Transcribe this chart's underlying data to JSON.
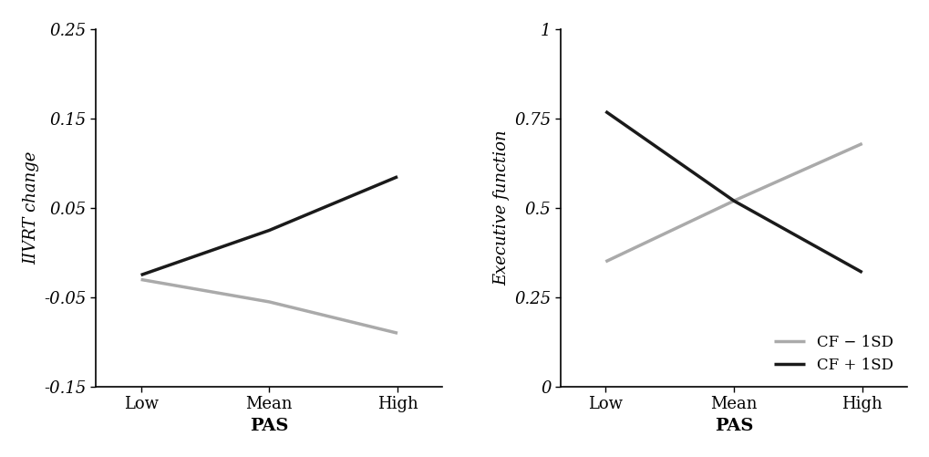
{
  "left_plot": {
    "ylabel": "IIVRT change",
    "xlabel": "PAS",
    "x_labels": [
      "Low",
      "Mean",
      "High"
    ],
    "x_values": [
      0,
      1,
      2
    ],
    "low_cf_line": [
      -0.03,
      -0.055,
      -0.09
    ],
    "high_cf_line": [
      -0.025,
      0.025,
      0.085
    ],
    "ylim": [
      -0.15,
      0.25
    ],
    "yticks": [
      -0.15,
      -0.05,
      0.05,
      0.15,
      0.25
    ],
    "ytick_labels": [
      "-0.15",
      "-0.05",
      "0.05",
      "0.15",
      "0.25"
    ]
  },
  "right_plot": {
    "ylabel": "Executive function",
    "xlabel": "PAS",
    "x_labels": [
      "Low",
      "Mean",
      "High"
    ],
    "x_values": [
      0,
      1,
      2
    ],
    "low_cf_line": [
      0.35,
      0.52,
      0.68
    ],
    "high_cf_line": [
      0.77,
      0.52,
      0.32
    ],
    "ylim": [
      0,
      1.0
    ],
    "yticks": [
      0,
      0.25,
      0.5,
      0.75,
      1.0
    ],
    "ytick_labels": [
      "0",
      "0.25",
      "0.5",
      "0.75",
      "1"
    ]
  },
  "legend_labels": [
    "CF − 1SD",
    "CF + 1SD"
  ],
  "low_cf_color": "#aaaaaa",
  "high_cf_color": "#1a1a1a",
  "line_width": 2.5,
  "font_family": "serif",
  "tick_fontsize": 13,
  "ylabel_fontsize": 13,
  "xlabel_fontsize": 14,
  "legend_fontsize": 12,
  "background_color": "#ffffff"
}
